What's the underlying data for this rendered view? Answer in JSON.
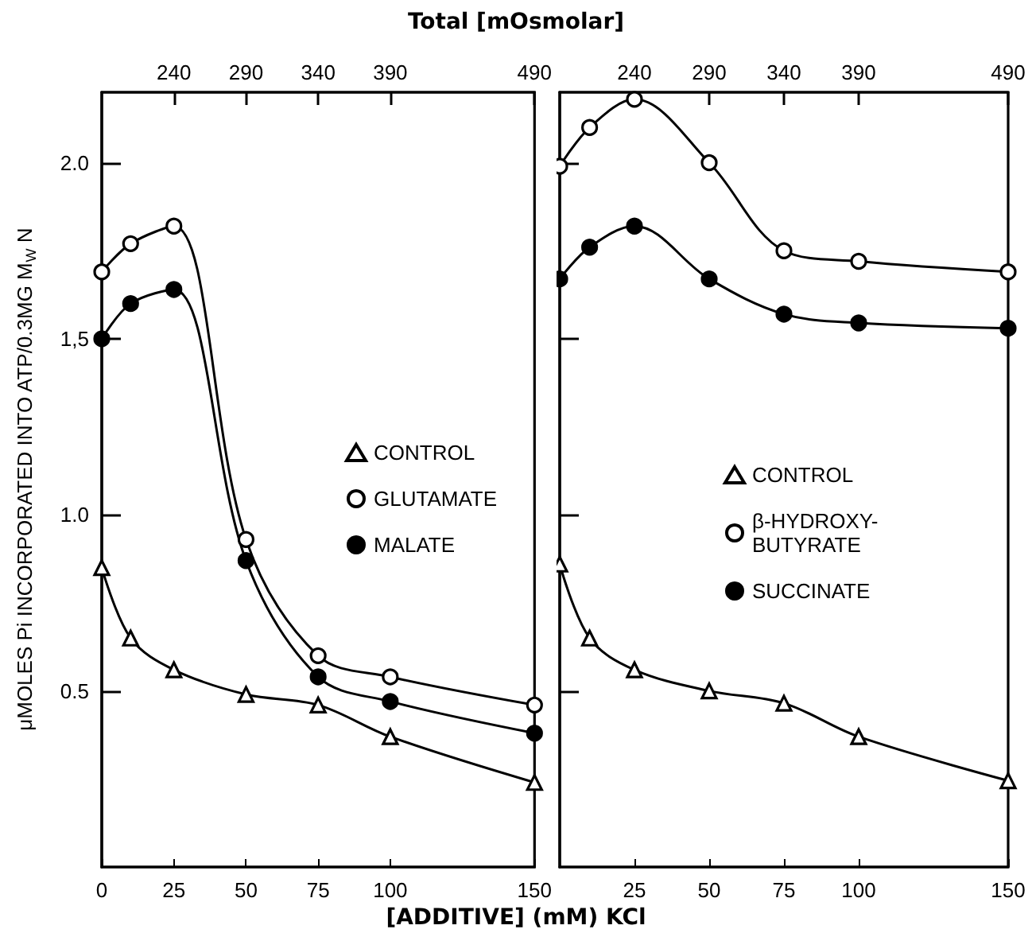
{
  "chart_data": [
    {
      "type": "line",
      "xlabel": "[ADDITIVE] (mM) KCl",
      "x2label": "Total [mOsmolar]",
      "ylabel": "μMOLES Pi INCORPORATED INTO ATP/0.3MG M$_{W}$ N",
      "x": [
        0,
        10,
        25,
        50,
        75,
        100,
        150
      ],
      "series": [
        {
          "name": "CONTROL",
          "color": "#ffffff",
          "marker": "triangle",
          "values": [
            0.85,
            0.65,
            0.56,
            0.49,
            0.46,
            0.37,
            0.24
          ]
        },
        {
          "name": "GLUTAMATE",
          "color": "#ffffff",
          "marker": "circle",
          "values": [
            1.69,
            1.77,
            1.82,
            0.93,
            0.6,
            0.54,
            0.46
          ]
        },
        {
          "name": "MALATE",
          "color": "#000000",
          "marker": "circle",
          "values": [
            1.5,
            1.6,
            1.64,
            0.87,
            0.54,
            0.47,
            0.38
          ]
        }
      ],
      "xlim": [
        0,
        150
      ],
      "xticks": [
        0,
        25,
        50,
        75,
        100,
        150
      ],
      "x2lim": [
        190,
        490
      ],
      "x2ticks": [
        240,
        290,
        340,
        390,
        490
      ],
      "ylim": [
        0,
        2.2
      ],
      "yticks": [
        0.5,
        {
          "value": 1,
          "label": "1.0"
        },
        {
          "value": 1.5,
          "label": "1,5"
        },
        {
          "value": 2,
          "label": "2.0"
        }
      ],
      "grid": false,
      "legend": "right",
      "line_style": "solid"
    },
    {
      "type": "line",
      "x": [
        0,
        10,
        25,
        50,
        75,
        100,
        150
      ],
      "series": [
        {
          "name": "CONTROL",
          "color": "#ffffff",
          "marker": "triangle",
          "values": [
            0.86,
            0.65,
            0.56,
            0.5,
            0.465,
            0.37,
            0.245
          ]
        },
        {
          "name": "β-HYDROXY-\nBUTYRATE",
          "color": "#ffffff",
          "marker": "circle",
          "values": [
            1.99,
            2.1,
            2.18,
            2.0,
            1.75,
            1.72,
            1.69
          ]
        },
        {
          "name": "SUCCINATE",
          "color": "#000000",
          "marker": "circle",
          "values": [
            1.67,
            1.76,
            1.82,
            1.67,
            1.57,
            1.545,
            1.53
          ]
        }
      ],
      "xlim": [
        0,
        150
      ],
      "xticks": [
        25,
        50,
        75,
        100,
        150
      ],
      "x2lim": [
        190,
        490
      ],
      "x2ticks": [
        240,
        290,
        340,
        390,
        490
      ],
      "ylim": [
        0,
        2.2
      ],
      "yticks": [
        0.5,
        1,
        1.5,
        2
      ],
      "tick_labels": "x",
      "grid": false,
      "legend": "right",
      "line_style": "solid"
    }
  ]
}
